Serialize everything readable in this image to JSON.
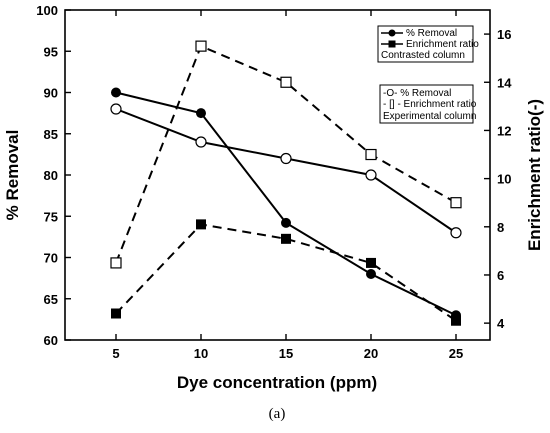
{
  "chart_data": {
    "type": "line",
    "xlabel": "Dye concentration (ppm)",
    "ylabel": "% Removal",
    "y2label": "Enrichment ratio(-)",
    "x": [
      5,
      10,
      15,
      20,
      25
    ],
    "xlim": [
      2,
      27
    ],
    "xticks": [
      5,
      10,
      15,
      20,
      25
    ],
    "ylim": [
      60,
      100
    ],
    "yticks": [
      60,
      65,
      70,
      75,
      80,
      85,
      90,
      95,
      100
    ],
    "y2lim": [
      3.3,
      17
    ],
    "y2ticks": [
      4,
      6,
      8,
      10,
      12,
      14,
      16
    ],
    "series": [
      {
        "name": "% Removal",
        "axis": "left",
        "marker": "filled-circle",
        "dash": false,
        "values": [
          90,
          87.5,
          74.2,
          68,
          63
        ]
      },
      {
        "name": "Enrichment ratio",
        "axis": "right",
        "marker": "filled-square",
        "dash": true,
        "values": [
          4.4,
          8.1,
          7.5,
          6.5,
          4.1
        ]
      },
      {
        "name": "% Removal",
        "axis": "left",
        "marker": "open-circle",
        "dash": false,
        "values": [
          88,
          84,
          82,
          80,
          73
        ]
      },
      {
        "name": "Enrichment ratio",
        "axis": "right",
        "marker": "open-square",
        "dash": true,
        "values": [
          6.5,
          15.5,
          14,
          11,
          9
        ]
      }
    ],
    "legends": [
      {
        "title": "Contrasted column",
        "entries": [
          {
            "label": "% Removal",
            "marker": "filled-circle",
            "dash": false
          },
          {
            "label": "Enrichment ratio",
            "marker": "filled-square",
            "dash": false
          }
        ]
      },
      {
        "title": "Experimental column",
        "entries": [
          {
            "label": "-O-  % Removal"
          },
          {
            "label": "- [] - Enrichment ratio"
          }
        ]
      }
    ],
    "caption": "(a)"
  }
}
